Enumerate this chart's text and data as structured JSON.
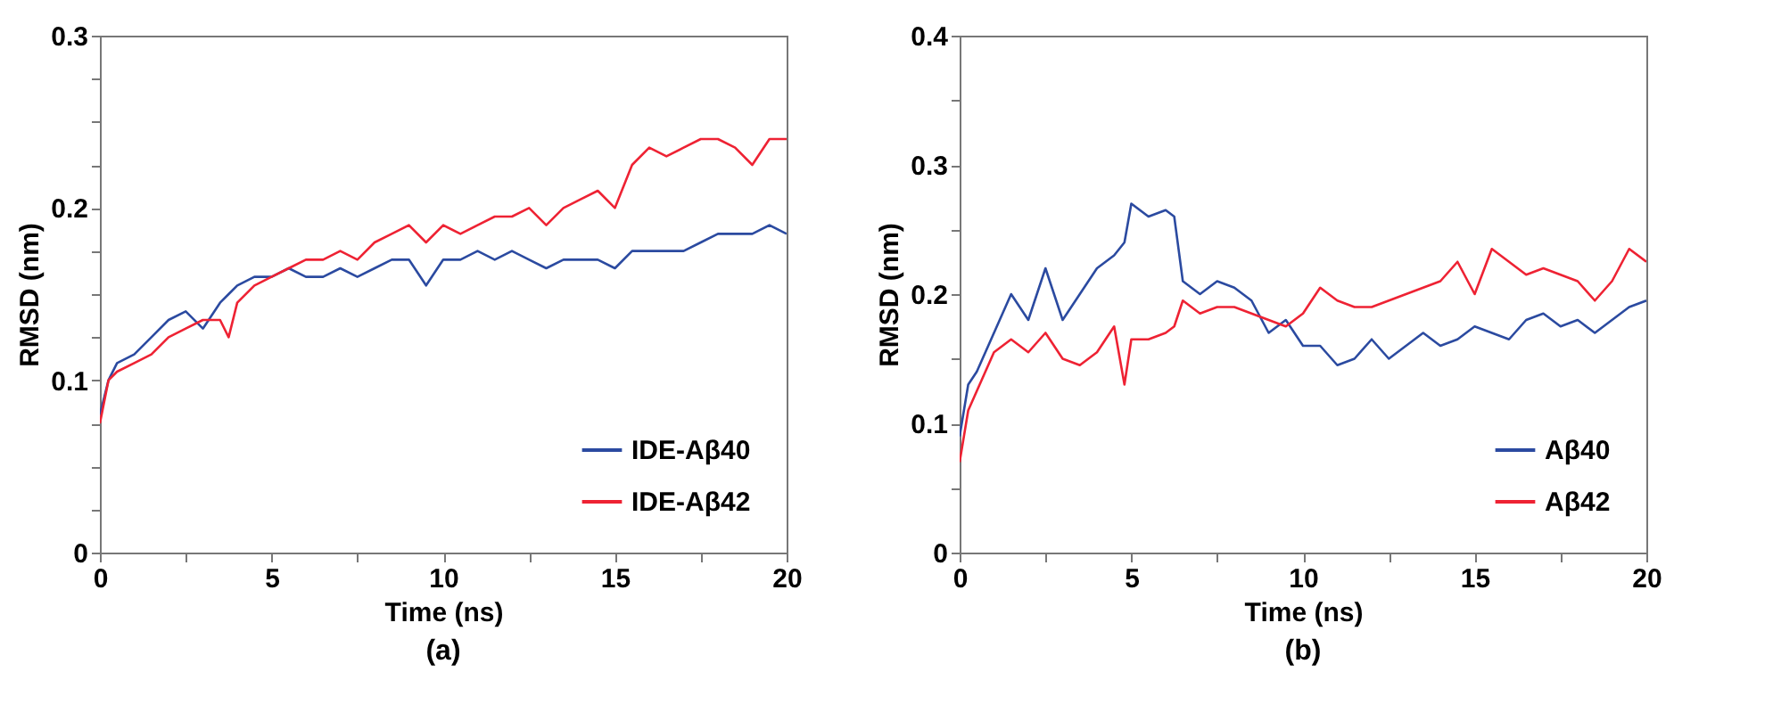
{
  "chart_data": [
    {
      "type": "line",
      "title": "(a)",
      "xlabel": "Time (ns)",
      "ylabel": "RMSD (nm)",
      "legend": "bottom right",
      "line_style": "solid",
      "grid": false,
      "xlim": [
        0,
        20
      ],
      "xticks": [
        0,
        {
          "value": 2.5,
          "label": null
        },
        5,
        {
          "value": 7.5,
          "label": null
        },
        10,
        {
          "value": 12.5,
          "label": null
        },
        15,
        {
          "value": 17.5,
          "label": null
        },
        20
      ],
      "ylim": [
        0,
        0.3
      ],
      "yticks": [
        0,
        {
          "value": 0.025,
          "label": null
        },
        {
          "value": 0.05,
          "label": null
        },
        {
          "value": 0.075,
          "label": null
        },
        0.1,
        {
          "value": 0.125,
          "label": null
        },
        {
          "value": 0.15,
          "label": null
        },
        {
          "value": 0.175,
          "label": null
        },
        0.2,
        {
          "value": 0.225,
          "label": null
        },
        {
          "value": 0.25,
          "label": null
        },
        {
          "value": 0.275,
          "label": null
        },
        0.3
      ],
      "x": [
        0,
        0.25,
        0.5,
        1,
        1.5,
        2,
        2.5,
        3,
        3.5,
        3.75,
        4,
        4.5,
        5,
        5.5,
        6,
        6.5,
        7,
        7.5,
        8,
        8.5,
        9,
        9.5,
        10,
        10.5,
        11,
        11.5,
        12,
        12.5,
        13,
        13.5,
        14,
        14.5,
        15,
        15.5,
        16,
        16.5,
        17,
        17.5,
        18,
        18.5,
        19,
        19.5,
        20
      ],
      "series": [
        {
          "name": "IDE-Aβ40",
          "color": "#2b4aa0",
          "values": [
            0.08,
            0.1,
            0.11,
            0.115,
            0.125,
            0.135,
            0.14,
            0.13,
            0.145,
            0.15,
            0.155,
            0.16,
            0.16,
            0.165,
            0.16,
            0.16,
            0.165,
            0.16,
            0.165,
            0.17,
            0.17,
            0.155,
            0.17,
            0.17,
            0.175,
            0.17,
            0.175,
            0.17,
            0.165,
            0.17,
            0.17,
            0.17,
            0.165,
            0.175,
            0.175,
            0.175,
            0.175,
            0.18,
            0.185,
            0.185,
            0.185,
            0.19,
            0.185
          ]
        },
        {
          "name": "IDE-Aβ42",
          "color": "#ee2233",
          "values": [
            0.075,
            0.1,
            0.105,
            0.11,
            0.115,
            0.125,
            0.13,
            0.135,
            0.135,
            0.125,
            0.145,
            0.155,
            0.16,
            0.165,
            0.17,
            0.17,
            0.175,
            0.17,
            0.18,
            0.185,
            0.19,
            0.18,
            0.19,
            0.185,
            0.19,
            0.195,
            0.195,
            0.2,
            0.19,
            0.2,
            0.205,
            0.21,
            0.2,
            0.225,
            0.235,
            0.23,
            0.235,
            0.24,
            0.24,
            0.235,
            0.225,
            0.24,
            0.24
          ]
        }
      ]
    },
    {
      "type": "line",
      "title": "(b)",
      "xlabel": "Time (ns)",
      "ylabel": "RMSD (nm)",
      "legend": "bottom right",
      "line_style": "solid",
      "grid": false,
      "xlim": [
        0,
        20
      ],
      "xticks": [
        0,
        {
          "value": 2.5,
          "label": null
        },
        5,
        {
          "value": 7.5,
          "label": null
        },
        10,
        {
          "value": 12.5,
          "label": null
        },
        15,
        {
          "value": 17.5,
          "label": null
        },
        20
      ],
      "ylim": [
        0,
        0.4
      ],
      "yticks": [
        0,
        {
          "value": 0.05,
          "label": null
        },
        0.1,
        {
          "value": 0.15,
          "label": null
        },
        0.2,
        {
          "value": 0.25,
          "label": null
        },
        0.3,
        {
          "value": 0.35,
          "label": null
        },
        0.4
      ],
      "x": [
        0,
        0.25,
        0.5,
        1,
        1.5,
        2,
        2.5,
        3,
        3.5,
        4,
        4.5,
        4.8,
        5,
        5.5,
        6,
        6.25,
        6.5,
        7,
        7.5,
        8,
        8.5,
        9,
        9.5,
        10,
        10.5,
        11,
        11.5,
        12,
        12.5,
        13,
        13.5,
        14,
        14.5,
        15,
        15.5,
        16,
        16.5,
        17,
        17.5,
        18,
        18.5,
        19,
        19.5,
        20
      ],
      "series": [
        {
          "name": "Aβ40",
          "color": "#2b4aa0",
          "values": [
            0.09,
            0.13,
            0.14,
            0.17,
            0.2,
            0.18,
            0.22,
            0.18,
            0.2,
            0.22,
            0.23,
            0.24,
            0.27,
            0.26,
            0.265,
            0.26,
            0.21,
            0.2,
            0.21,
            0.205,
            0.195,
            0.17,
            0.18,
            0.16,
            0.16,
            0.145,
            0.15,
            0.165,
            0.15,
            0.16,
            0.17,
            0.16,
            0.165,
            0.175,
            0.17,
            0.165,
            0.18,
            0.185,
            0.175,
            0.18,
            0.17,
            0.18,
            0.19,
            0.195
          ]
        },
        {
          "name": "Aβ42",
          "color": "#ee2233",
          "values": [
            0.07,
            0.11,
            0.125,
            0.155,
            0.165,
            0.155,
            0.17,
            0.15,
            0.145,
            0.155,
            0.175,
            0.13,
            0.165,
            0.165,
            0.17,
            0.175,
            0.195,
            0.185,
            0.19,
            0.19,
            0.185,
            0.18,
            0.175,
            0.185,
            0.205,
            0.195,
            0.19,
            0.19,
            0.195,
            0.2,
            0.205,
            0.21,
            0.225,
            0.2,
            0.235,
            0.225,
            0.215,
            0.22,
            0.215,
            0.21,
            0.195,
            0.21,
            0.235,
            0.225
          ]
        }
      ]
    }
  ]
}
